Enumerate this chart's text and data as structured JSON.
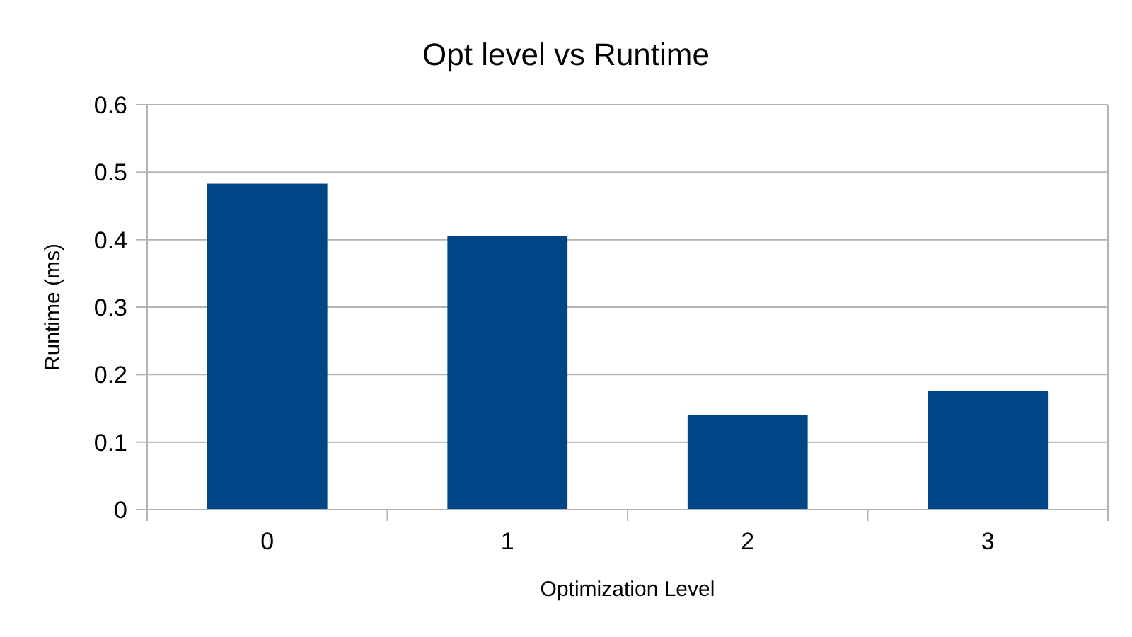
{
  "chart_data": {
    "type": "bar",
    "title": "Opt level vs Runtime",
    "xlabel": "Optimization Level",
    "ylabel": "Runtime (ms)",
    "categories": [
      "0",
      "1",
      "2",
      "3"
    ],
    "values": [
      0.483,
      0.405,
      0.14,
      0.176
    ],
    "color": "#004586",
    "ylim": [
      0,
      0.6
    ],
    "yticks": [
      0,
      0.1,
      0.2,
      0.3,
      0.4,
      0.5,
      0.6
    ],
    "grid": "y"
  }
}
